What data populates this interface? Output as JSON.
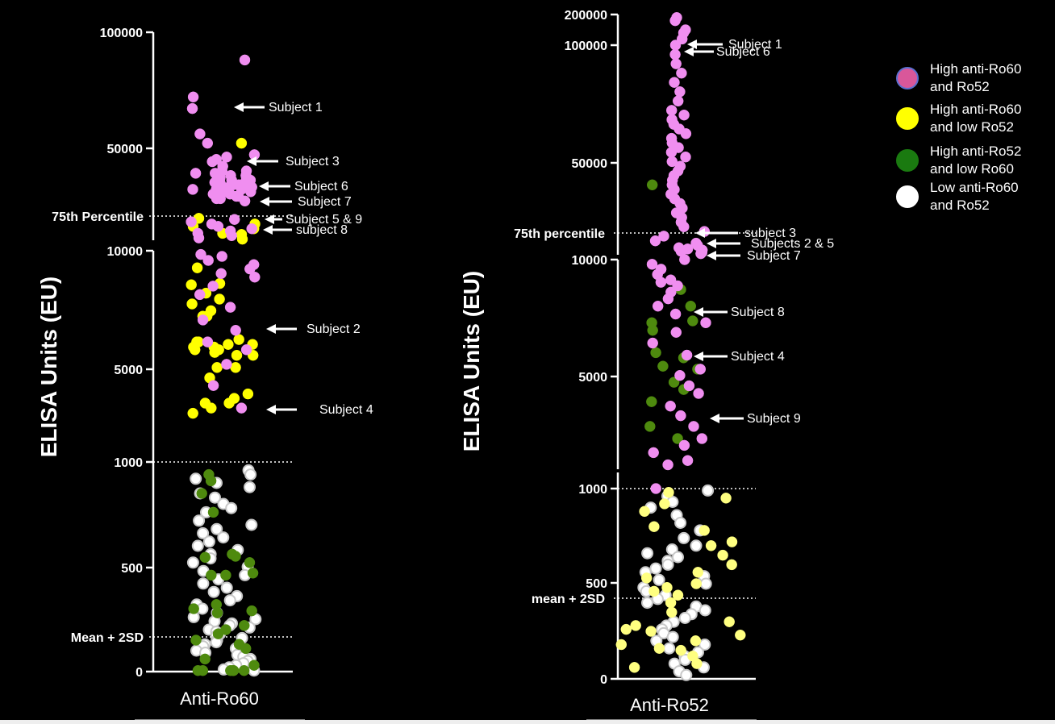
{
  "chart_data": [
    {
      "type": "scatter",
      "xlabel": "Anti-Ro60",
      "ylabel": "ELISA Units (EU)",
      "yscale": "segmented (linear 0–1000, log 1000–10000, linear 10000–100000)",
      "y_ticks": [
        "0",
        "500",
        "1000",
        "5000",
        "10000",
        "50000",
        "100000"
      ],
      "reference_lines": [
        {
          "label": "75th Percentile",
          "value": 20000
        },
        {
          "label": "",
          "value": 1000
        },
        {
          "label": "Mean + 2SD",
          "value": 160
        }
      ],
      "annotations": [
        {
          "label": "Subject 1",
          "value": 65000
        },
        {
          "label": "Subject 3",
          "value": 43000
        },
        {
          "label": "Subject 6",
          "value": 31000
        },
        {
          "label": "Subject 7",
          "value": 26000
        },
        {
          "label": "Subject 5 & 9",
          "value": 19000
        },
        {
          "label": "subject 8",
          "value": 15000
        },
        {
          "label": "Subject 2",
          "value": 6700
        },
        {
          "label": "Subject 4",
          "value": 3000
        }
      ],
      "series": [
        {
          "name": "High anti-Ro60 and Ro52",
          "color": "#f08ef0",
          "values": [
            88000,
            72000,
            67000,
            56000,
            52000,
            47000,
            46000,
            45000,
            44000,
            42000,
            40000,
            40000,
            39000,
            39000,
            38000,
            38000,
            37000,
            37000,
            36000,
            36000,
            36000,
            35000,
            35000,
            35000,
            34000,
            34000,
            34000,
            33000,
            33000,
            33000,
            32000,
            32000,
            32000,
            31000,
            31000,
            30000,
            30000,
            29000,
            29000,
            28000,
            28000,
            27000,
            19000,
            18000,
            17000,
            16000,
            15000,
            14000,
            13000,
            12000,
            11000,
            9600,
            9400,
            9000,
            8600,
            8200,
            7800,
            7500,
            6800,
            6200,
            5400,
            4700,
            4200,
            3700,
            3400,
            2900,
            2300,
            1800
          ]
        },
        {
          "name": "High anti-Ro60 and low Ro52",
          "color": "#ffff00",
          "values": [
            52000,
            19500,
            17000,
            16000,
            15000,
            13000,
            12500,
            10500,
            8300,
            7000,
            6900,
            6300,
            5900,
            5600,
            5200,
            4900,
            4900,
            3800,
            3700,
            3700,
            3600,
            3600,
            3500,
            3500,
            3400,
            3400,
            3300,
            3200,
            3200,
            2800,
            2800,
            2500,
            2100,
            2000,
            1900,
            1900,
            1800,
            1700
          ]
        },
        {
          "name": "High anti-Ro52 and low Ro60",
          "color": "#4e8a0e",
          "values": [
            940,
            910,
            850,
            760,
            560,
            550,
            545,
            520,
            470,
            460,
            460,
            320,
            300,
            290,
            280,
            220,
            200,
            180,
            150,
            130,
            110,
            60,
            30,
            5,
            5,
            5,
            5,
            5,
            5
          ]
        },
        {
          "name": "Low anti-Ro60 and Ro52",
          "color": "#ffffff",
          "values": [
            960,
            940,
            920,
            900,
            880,
            850,
            830,
            800,
            780,
            760,
            720,
            700,
            680,
            660,
            640,
            620,
            600,
            580,
            560,
            540,
            520,
            500,
            480,
            460,
            440,
            420,
            400,
            380,
            360,
            340,
            320,
            300,
            280,
            260,
            250,
            240,
            230,
            220,
            210,
            200,
            190,
            180,
            170,
            160,
            150,
            140,
            130,
            120,
            110,
            100,
            90,
            80,
            70,
            60,
            50,
            40,
            30,
            20,
            10,
            5
          ]
        }
      ]
    },
    {
      "type": "scatter",
      "xlabel": "Anti-Ro52",
      "ylabel": "ELISA Units (EU)",
      "yscale": "segmented (linear 0–1000, log 1000–10000, linear 10000–200000)",
      "y_ticks": [
        "0",
        "500",
        "1000",
        "5000",
        "10000",
        "50000",
        "100000",
        "200000"
      ],
      "reference_lines": [
        {
          "label": "75th percentile",
          "value": 15000
        },
        {
          "label": "",
          "value": 1000
        },
        {
          "label": "mean + 2SD",
          "value": 430
        }
      ],
      "annotations": [
        {
          "label": "Subject 1",
          "value": 100000
        },
        {
          "label": "Subject 6",
          "value": 96000
        },
        {
          "label": "subject 3",
          "value": 15500
        },
        {
          "label": "Subjects 2 & 5",
          "value": 13000
        },
        {
          "label": "Subject 7",
          "value": 10500
        },
        {
          "label": "Subject 8",
          "value": 7500
        },
        {
          "label": "Subject 4",
          "value": 5500
        },
        {
          "label": "Subject 9",
          "value": 3000
        }
      ],
      "series": [
        {
          "name": "High anti-Ro60 and Ro52",
          "color": "#f08ef0",
          "values": [
            190000,
            180000,
            150000,
            140000,
            120000,
            100000,
            96000,
            92000,
            88000,
            84000,
            80000,
            76000,
            72000,
            70000,
            68000,
            66000,
            64000,
            62000,
            60000,
            58000,
            56000,
            54000,
            52000,
            50000,
            48000,
            46000,
            44000,
            42000,
            40000,
            38000,
            36000,
            34000,
            32000,
            30000,
            28000,
            26000,
            24000,
            22000,
            20000,
            18000,
            16000,
            15000,
            14000,
            13000,
            12500,
            12000,
            11500,
            11000,
            10500,
            10000,
            9500,
            9000,
            8500,
            8000,
            7800,
            7500,
            7000,
            6500,
            6000,
            5500,
            5000,
            4500,
            4000,
            3500,
            3000,
            2800,
            2500,
            2300,
            2000,
            1800,
            1600,
            1400,
            1300,
            1200,
            1100,
            1050,
            1000
          ]
        },
        {
          "name": "High anti-Ro60 and low Ro52",
          "color": "#ffff80",
          "values": [
            980,
            950,
            920,
            880,
            800,
            780,
            720,
            700,
            650,
            600,
            560,
            530,
            500,
            480,
            460,
            440,
            400,
            350,
            300,
            280,
            260,
            250,
            230,
            200,
            180,
            160,
            150,
            120,
            80,
            60
          ]
        },
        {
          "name": "High anti-Ro52 and low Ro60",
          "color": "#4e8a0e",
          "values": [
            40000,
            7200,
            6000,
            5100,
            5000,
            4600,
            3600,
            3400,
            3100,
            3000,
            2600,
            2400,
            2100,
            1600,
            1400
          ]
        },
        {
          "name": "Low anti-Ro60 and Ro52",
          "color": "#ffffff",
          "values": [
            990,
            960,
            930,
            900,
            860,
            820,
            780,
            740,
            700,
            680,
            660,
            640,
            620,
            600,
            580,
            560,
            540,
            520,
            500,
            480,
            460,
            440,
            420,
            400,
            380,
            360,
            340,
            320,
            300,
            280,
            260,
            240,
            220,
            200,
            180,
            160,
            140,
            120,
            100,
            80,
            60,
            40,
            20
          ]
        }
      ]
    }
  ],
  "legend": [
    {
      "line1": "High anti-Ro60",
      "line2": "and Ro52",
      "color": "#d9579a",
      "stroke": "#5a6fd0"
    },
    {
      "line1": "High anti-Ro60",
      "line2": "and low Ro52",
      "color": "#ffff00",
      "stroke": "#ffff00"
    },
    {
      "line1": "High anti-Ro52",
      "line2": "and low Ro60",
      "color": "#1a7a10",
      "stroke": "#1a7a10"
    },
    {
      "line1": "Low anti-Ro60",
      "line2": "and Ro52",
      "color": "#ffffff",
      "stroke": "#ffffff"
    }
  ]
}
